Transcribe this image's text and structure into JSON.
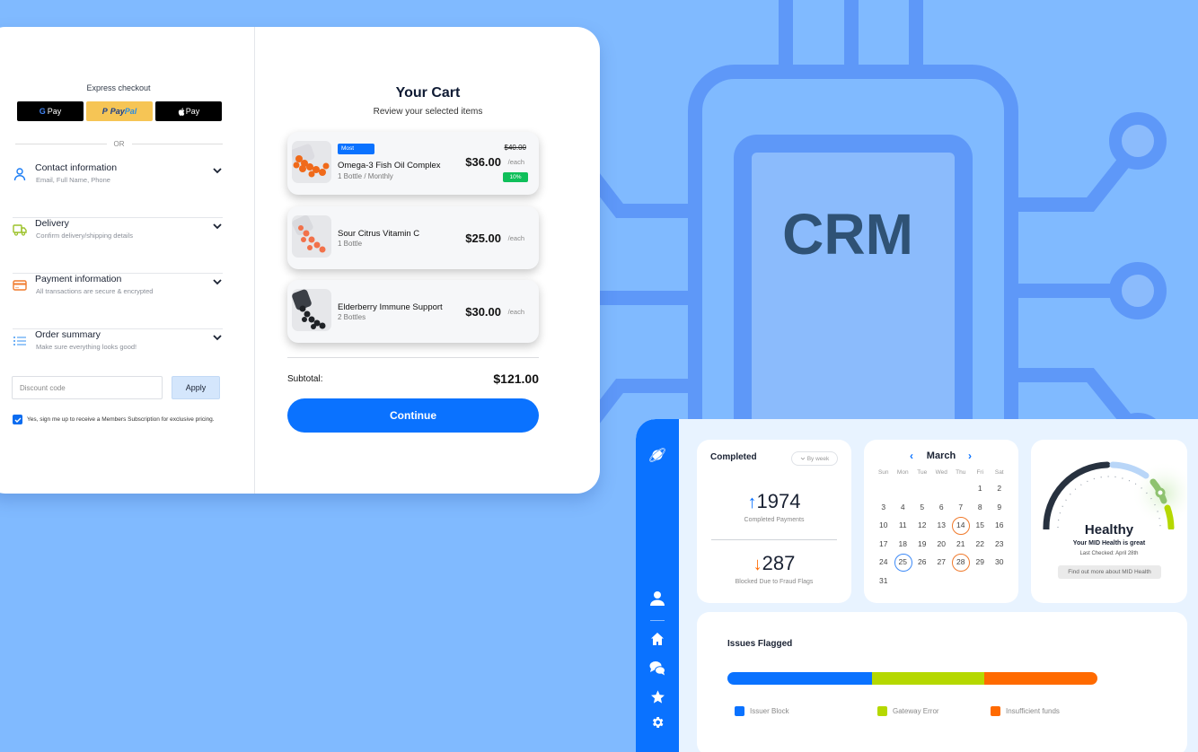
{
  "colors": {
    "background": "#80baff",
    "chip_stroke": "#5e98f8",
    "chip_inner": "#8bbbfc",
    "crm_text": "#2f5275",
    "brand_blue": "#0a72ff",
    "gateway_green": "#b5d800",
    "insufficient_orange": "#ff6a00",
    "discount_green": "#0fbf5a",
    "paypal_yellow": "#f6c555"
  },
  "hero": {
    "label": "CRM"
  },
  "checkout": {
    "express_title": "Express checkout",
    "pay_buttons": [
      {
        "icon": "google-g-icon",
        "label": "Pay"
      },
      {
        "label_a": "Pay",
        "label_b": "Pal"
      },
      {
        "icon": "apple-icon",
        "label": "Pay"
      }
    ],
    "or_label": "OR",
    "sections": [
      {
        "title": "Contact information",
        "subtitle": "Email, Full Name, Phone",
        "icon": "user-icon"
      },
      {
        "title": "Delivery",
        "subtitle": "Confirm delivery/shipping details",
        "icon": "truck-icon"
      },
      {
        "title": "Payment information",
        "subtitle": "All transactions are secure & encrypted",
        "icon": "credit-card-icon"
      },
      {
        "title": "Order summary",
        "subtitle": "Make sure everything looks good!",
        "icon": "list-icon"
      }
    ],
    "discount_placeholder": "Discount code",
    "apply_label": "Apply",
    "subscription_label": "Yes, sign me up to receive a Members Subscription for exclusive pricing.",
    "subscription_checked": true
  },
  "cart": {
    "title": "Your Cart",
    "subtitle": "Review your selected items",
    "items": [
      {
        "badge": "Most",
        "name": "Omega-3 Fish Oil Complex",
        "qty": "1 Bottle / Monthly",
        "old_price": "$40.00",
        "price": "$36.00",
        "unit": "/each",
        "discount": "10%"
      },
      {
        "name": "Sour Citrus Vitamin C",
        "qty": "1 Bottle",
        "price": "$25.00",
        "unit": "/each"
      },
      {
        "name": "Elderberry Immune Support",
        "qty": "2 Bottles",
        "price": "$30.00",
        "unit": "/each"
      }
    ],
    "subtotal_label": "Subtotal:",
    "subtotal_value": "$121.00",
    "continue_label": "Continue"
  },
  "dashboard": {
    "sidebar": {
      "logo_icon": "planet-icon",
      "items": [
        "user-icon",
        "home-icon",
        "chat-icon",
        "star-icon",
        "gear-icon"
      ]
    },
    "completed": {
      "title": "Completed",
      "filter": "By week",
      "payments_value": "1974",
      "payments_label": "Completed Payments",
      "blocked_value": "287",
      "blocked_label": "Blocked Due to Fraud Flags"
    },
    "calendar": {
      "month": "March",
      "weekdays": [
        "Sun",
        "Mon",
        "Tue",
        "Wed",
        "Thu",
        "Fri",
        "Sat"
      ],
      "leading_blanks": 5,
      "days": 31,
      "highlight_orange": [
        14,
        28
      ],
      "highlight_blue": [
        25
      ]
    },
    "health": {
      "status": "Healthy",
      "subtitle": "Your MID Health is great",
      "last_checked": "Last Checked: April 28th",
      "link_label": "Find out more about MID Health"
    },
    "issues": {
      "title": "Issues Flagged",
      "segments": [
        {
          "label": "Issuer Block",
          "share": 39,
          "color": "#0a72ff"
        },
        {
          "label": "Gateway Error",
          "share": 30.5,
          "color": "#b5d800"
        },
        {
          "label": "Insufficient funds",
          "share": 30.5,
          "color": "#ff6a00"
        }
      ]
    }
  }
}
